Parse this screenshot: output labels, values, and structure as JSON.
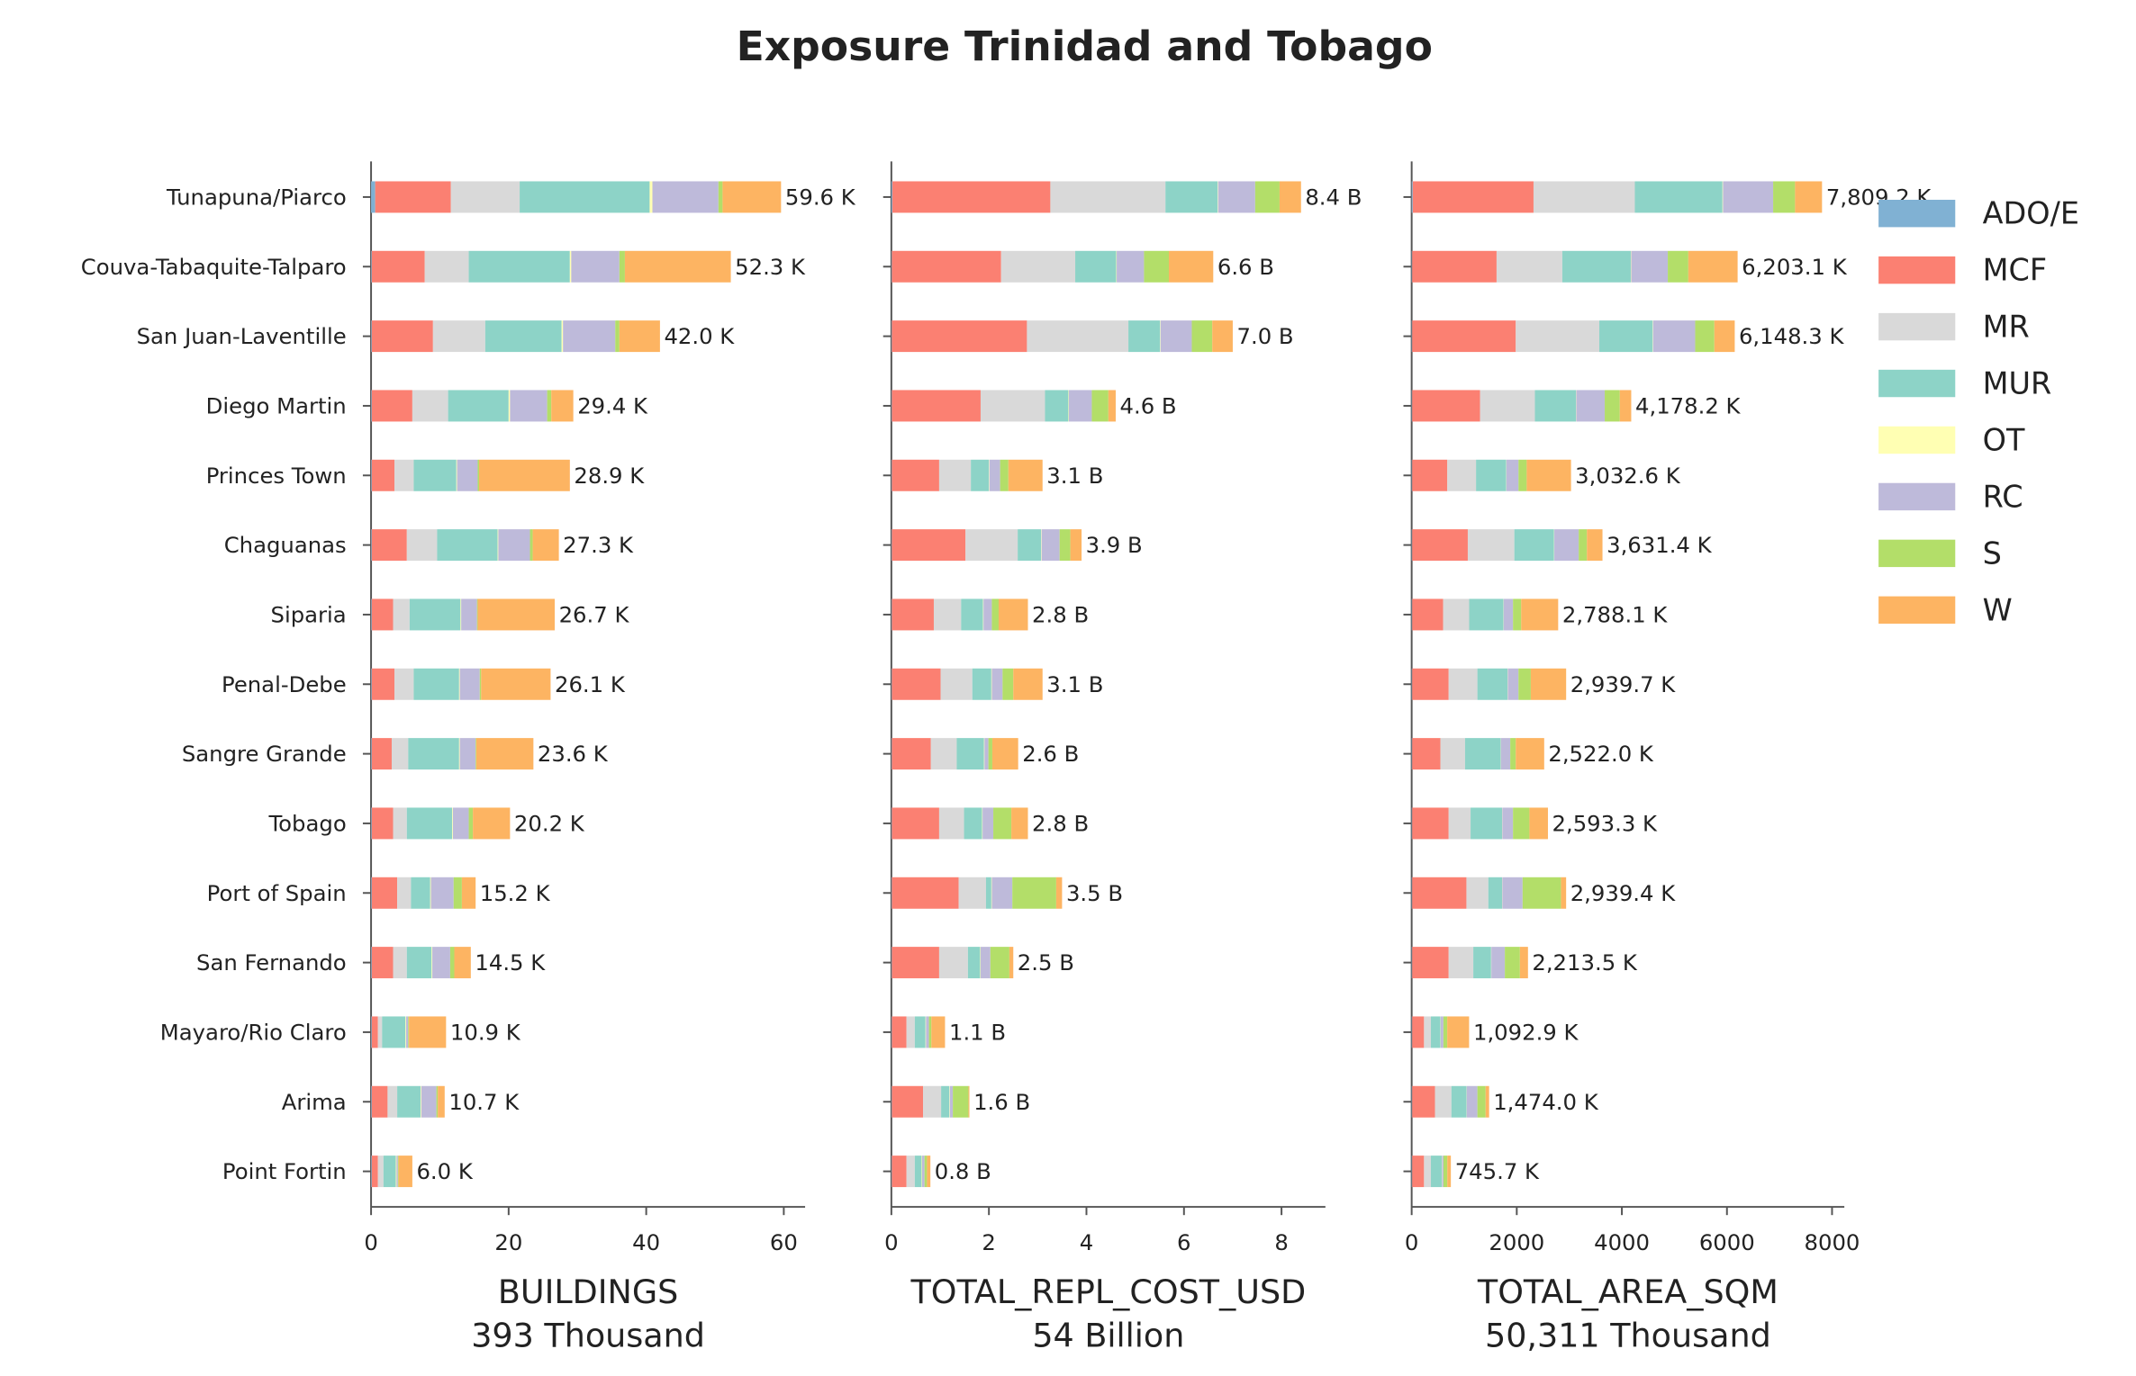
{
  "title": "Exposure Trinidad and Tobago",
  "chart_data": [
    {
      "type": "bar",
      "orientation": "horizontal",
      "xlabel": "BUILDINGS",
      "subtitle": "393 Thousand",
      "categories": [
        "Tunapuna/Piarco",
        "Couva-Tabaquite-Talparo",
        "San Juan-Laventille",
        "Diego Martin",
        "Princes Town",
        "Chaguanas",
        "Siparia",
        "Penal-Debe",
        "Sangre Grande",
        "Tobago",
        "Port of Spain",
        "San Fernando",
        "Mayaro/Rio Claro",
        "Arima",
        "Point Fortin"
      ],
      "xlim": [
        0,
        63.1
      ],
      "xticks": [
        0,
        20,
        40,
        60
      ],
      "series": [
        {
          "name": "ADO/E",
          "color": "#80b1d3",
          "values": [
            0.6,
            0.1,
            0.1,
            0.1,
            0.1,
            0.1,
            0.1,
            0.1,
            0.1,
            0.1,
            0.1,
            0.1,
            0.1,
            0.1,
            0.1
          ]
        },
        {
          "name": "MCF",
          "color": "#fb8072",
          "values": [
            11.0,
            7.7,
            8.9,
            5.9,
            3.3,
            5.1,
            3.1,
            3.3,
            2.9,
            3.1,
            3.7,
            3.1,
            0.9,
            2.3,
            0.9
          ]
        },
        {
          "name": "MR",
          "color": "#d9d9d9",
          "values": [
            10.0,
            6.4,
            7.6,
            5.2,
            2.8,
            4.4,
            2.4,
            2.8,
            2.4,
            2.0,
            2.0,
            2.0,
            0.6,
            1.4,
            0.8
          ]
        },
        {
          "name": "MUR",
          "color": "#8dd3c7",
          "values": [
            18.9,
            14.7,
            11.1,
            8.8,
            6.2,
            8.8,
            7.4,
            6.6,
            7.4,
            6.6,
            2.8,
            3.6,
            3.4,
            3.4,
            1.8
          ]
        },
        {
          "name": "OT",
          "color": "#ffffb3",
          "values": [
            0.4,
            0.2,
            0.2,
            0.2,
            0.1,
            0.1,
            0.1,
            0.1,
            0.1,
            0.1,
            0.1,
            0.1,
            0.1,
            0.1,
            0.1
          ]
        },
        {
          "name": "RC",
          "color": "#bebada",
          "values": [
            9.6,
            7.0,
            7.6,
            5.4,
            3.0,
            4.6,
            2.3,
            2.9,
            2.3,
            2.3,
            3.3,
            2.6,
            0.3,
            2.2,
            0.2
          ]
        },
        {
          "name": "S",
          "color": "#b3de69",
          "values": [
            0.6,
            0.8,
            0.6,
            0.6,
            0.2,
            0.4,
            0.1,
            0.2,
            0.1,
            0.6,
            1.2,
            0.6,
            0.1,
            0.2,
            0.1
          ]
        },
        {
          "name": "W",
          "color": "#fdb462",
          "values": [
            8.5,
            15.4,
            5.9,
            3.2,
            13.2,
            3.8,
            11.2,
            10.1,
            8.3,
            5.4,
            2.0,
            2.4,
            5.4,
            1.0,
            2.0
          ]
        }
      ],
      "value_labels": [
        "59.6 K",
        "52.3 K",
        "42.0 K",
        "29.4 K",
        "28.9 K",
        "27.3 K",
        "26.7 K",
        "26.1 K",
        "23.6 K",
        "20.2 K",
        "15.2 K",
        "14.5 K",
        "10.9 K",
        "10.7 K",
        "6.0 K"
      ]
    },
    {
      "type": "bar",
      "orientation": "horizontal",
      "xlabel": "TOTAL_REPL_COST_USD",
      "subtitle": "54 Billion",
      "xlim": [
        0,
        8.9
      ],
      "xticks": [
        0,
        2,
        4,
        6,
        8
      ],
      "series": [
        {
          "color": "#80b1d3",
          "values": [
            0.02,
            0.01,
            0.01,
            0.01,
            0.01,
            0.01,
            0.01,
            0.01,
            0.01,
            0.01,
            0.01,
            0.01,
            0.01,
            0.01,
            0.01
          ]
        },
        {
          "color": "#fb8072",
          "values": [
            3.24,
            2.24,
            2.77,
            1.82,
            0.97,
            1.51,
            0.86,
            1.0,
            0.8,
            0.97,
            1.37,
            0.97,
            0.3,
            0.64,
            0.3
          ]
        },
        {
          "color": "#d9d9d9",
          "values": [
            2.36,
            1.52,
            2.08,
            1.32,
            0.65,
            1.07,
            0.56,
            0.65,
            0.53,
            0.51,
            0.56,
            0.59,
            0.17,
            0.37,
            0.17
          ]
        },
        {
          "color": "#8dd3c7",
          "values": [
            1.07,
            0.84,
            0.65,
            0.48,
            0.37,
            0.48,
            0.45,
            0.39,
            0.56,
            0.37,
            0.11,
            0.25,
            0.22,
            0.17,
            0.14
          ]
        },
        {
          "color": "#ffffb3",
          "values": [
            0.01,
            0.01,
            0.01,
            0.01,
            0.01,
            0.01,
            0.01,
            0.01,
            0.01,
            0.01,
            0.01,
            0.01,
            0.01,
            0.01,
            0.01
          ]
        },
        {
          "color": "#bebada",
          "values": [
            0.76,
            0.56,
            0.64,
            0.47,
            0.22,
            0.37,
            0.17,
            0.22,
            0.08,
            0.22,
            0.42,
            0.2,
            0.06,
            0.06,
            0.05
          ]
        },
        {
          "color": "#b3de69",
          "values": [
            0.5,
            0.51,
            0.42,
            0.34,
            0.17,
            0.22,
            0.14,
            0.22,
            0.08,
            0.37,
            0.9,
            0.39,
            0.05,
            0.32,
            0.05
          ]
        },
        {
          "color": "#fdb462",
          "values": [
            0.44,
            0.91,
            0.42,
            0.15,
            0.7,
            0.23,
            0.6,
            0.6,
            0.53,
            0.34,
            0.12,
            0.08,
            0.28,
            0.02,
            0.07
          ]
        }
      ],
      "value_labels": [
        "8.4 B",
        "6.6 B",
        "7.0 B",
        "4.6 B",
        "3.1 B",
        "3.9 B",
        "2.8 B",
        "3.1 B",
        "2.6 B",
        "2.8 B",
        "3.5 B",
        "2.5 B",
        "1.1 B",
        "1.6 B",
        "0.8 B"
      ]
    },
    {
      "type": "bar",
      "orientation": "horizontal",
      "xlabel": "TOTAL_AREA_SQM",
      "subtitle": "50,311 Thousand",
      "xlim": [
        0,
        8234
      ],
      "xticks": [
        0,
        2000,
        4000,
        6000,
        8000
      ],
      "series": [
        {
          "color": "#80b1d3",
          "values": [
            20,
            10,
            10,
            10,
            10,
            10,
            10,
            10,
            10,
            10,
            10,
            10,
            10,
            10,
            10
          ]
        },
        {
          "color": "#fb8072",
          "values": [
            2299,
            1606,
            1971,
            1293,
            668,
            1058,
            589,
            694,
            537,
            694,
            1032,
            694,
            225,
            433,
            225
          ]
        },
        {
          "color": "#d9d9d9",
          "values": [
            1928,
            1251,
            1590,
            1042,
            547,
            886,
            495,
            547,
            469,
            417,
            417,
            469,
            130,
            313,
            130
          ]
        },
        {
          "color": "#8dd3c7",
          "values": [
            1668,
            1303,
            1016,
            782,
            573,
            756,
            652,
            573,
            678,
            599,
            261,
            339,
            182,
            287,
            209
          ]
        },
        {
          "color": "#ffffb3",
          "values": [
            10,
            8,
            8,
            5,
            5,
            5,
            5,
            5,
            5,
            5,
            5,
            5,
            5,
            5,
            5
          ]
        },
        {
          "color": "#bebada",
          "values": [
            954,
            696,
            800,
            542,
            230,
            464,
            177,
            203,
            177,
            203,
            386,
            256,
            52,
            203,
            26
          ]
        },
        {
          "color": "#b3de69",
          "values": [
            417,
            391,
            365,
            287,
            156,
            156,
            156,
            235,
            104,
            313,
            730,
            287,
            73,
            156,
            73
          ]
        },
        {
          "color": "#fdb462",
          "values": [
            513.2,
            938.1,
            388.3,
            217.2,
            843.6,
            296.4,
            704.1,
            672.7,
            542,
            352.3,
            98.4,
            153.5,
            415.9,
            67,
            67.7
          ]
        }
      ],
      "value_labels": [
        "7,809.2 K",
        "6,203.1 K",
        "6,148.3 K",
        "4,178.2 K",
        "3,032.6 K",
        "3,631.4 K",
        "2,788.1 K",
        "2,939.7 K",
        "2,522.0 K",
        "2,593.3 K",
        "2,939.4 K",
        "2,213.5 K",
        "1,092.9 K",
        "1,474.0 K",
        "745.7 K"
      ]
    }
  ]
}
